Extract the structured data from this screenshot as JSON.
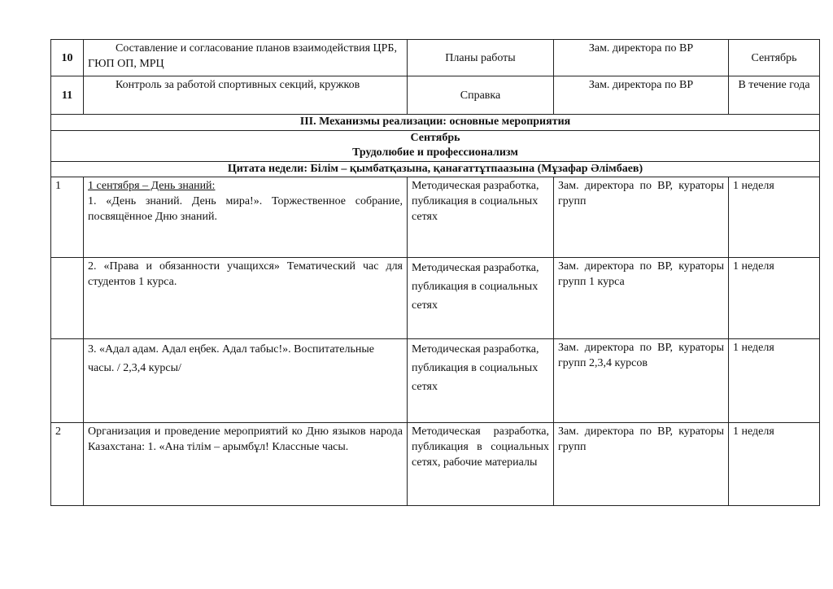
{
  "top_rows": [
    {
      "num": "10",
      "text": "Составление и согласование планов взаимодействия ЦРБ, ГЮП ОП, МРЦ",
      "form": "Планы работы",
      "responsible": "Зам. директора по ВР",
      "term": "Сентябрь"
    },
    {
      "num": "11",
      "text": "Контроль за работой спортивных секций, кружков",
      "form": "Справка",
      "responsible": "Зам. директора по ВР",
      "term": "В течение года"
    }
  ],
  "section_title": "III. Механизмы реализации: основные мероприятия",
  "month": "Сентябрь",
  "theme": "Трудолюбие и профессионализм",
  "quote": "Цитата недели:  Білім – қымбатқазына, қанағаттұтпаазына (Мұзафар Әлімбаев)",
  "rows": [
    {
      "num": "1",
      "heading": "1 сентября – День знаний:",
      "text": "1. «День знаний. День мира!». Торжественное собрание, посвящённое Дню знаний.",
      "form": "Методическая разработка, публикация в социальных сетях",
      "responsible": "Зам. директора по ВР, кураторы групп",
      "term": "1 неделя"
    },
    {
      "num": "",
      "text": "2. «Права и обязанности учащихся» Тематический час для студентов 1 курса.",
      "form": "Методическая разработка, публикация в социальных сетях",
      "responsible": "Зам. директора по ВР, кураторы групп 1 курса",
      "term": "1 неделя"
    },
    {
      "num": "",
      "text": "3. «Адал адам. Адал еңбек. Адал табыс!». Воспитательные часы. / 2,3,4 курсы/",
      "form": "Методическая разработка, публикация в социальных сетях",
      "responsible": "Зам. директора по ВР, кураторы групп 2,3,4 курсов",
      "term": "1 неделя"
    },
    {
      "num": "2",
      "text": "Организация и проведение мероприятий ко Дню языков народа Казахстана: 1. «Ана тілім – арымбұл! Классные часы.",
      "form": "Методическая разработка, публикация в социальных сетях, рабочие материалы",
      "responsible": "Зам. директора по ВР, кураторы групп",
      "term": "1 неделя"
    }
  ]
}
